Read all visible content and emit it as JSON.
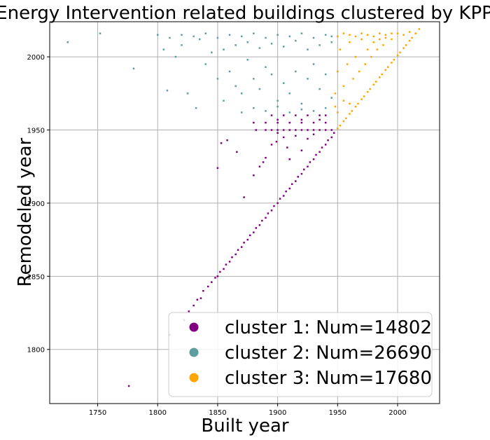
{
  "chart_data": {
    "type": "scatter",
    "title": "Energy Intervention related buildings clustered by KPP",
    "xlabel": "Built year",
    "ylabel": "Remodeled year",
    "xlim": [
      1710,
      2035
    ],
    "ylim": [
      1763,
      2024
    ],
    "x_ticks": [
      1750,
      1800,
      1850,
      1900,
      1950,
      2000
    ],
    "y_ticks": [
      1800,
      1850,
      1900,
      1950,
      2000
    ],
    "grid": true,
    "legend_position": "lower-right",
    "series": [
      {
        "name": "cluster 1: Num=14802",
        "color": "#800080",
        "points": [
          [
            1776,
            1775
          ],
          [
            1810,
            1810
          ],
          [
            1822,
            1820
          ],
          [
            1826,
            1826
          ],
          [
            1830,
            1830
          ],
          [
            1833,
            1834
          ],
          [
            1836,
            1835
          ],
          [
            1838,
            1840
          ],
          [
            1842,
            1843
          ],
          [
            1845,
            1846
          ],
          [
            1848,
            1849
          ],
          [
            1850,
            1850
          ],
          [
            1852,
            1853
          ],
          [
            1855,
            1855
          ],
          [
            1857,
            1858
          ],
          [
            1860,
            1860
          ],
          [
            1862,
            1863
          ],
          [
            1865,
            1865
          ],
          [
            1867,
            1868
          ],
          [
            1870,
            1870
          ],
          [
            1872,
            1873
          ],
          [
            1875,
            1875
          ],
          [
            1877,
            1878
          ],
          [
            1880,
            1880
          ],
          [
            1882,
            1883
          ],
          [
            1885,
            1885
          ],
          [
            1887,
            1888
          ],
          [
            1890,
            1890
          ],
          [
            1892,
            1893
          ],
          [
            1895,
            1895
          ],
          [
            1897,
            1898
          ],
          [
            1900,
            1900
          ],
          [
            1902,
            1903
          ],
          [
            1905,
            1905
          ],
          [
            1907,
            1908
          ],
          [
            1910,
            1910
          ],
          [
            1912,
            1913
          ],
          [
            1915,
            1915
          ],
          [
            1917,
            1918
          ],
          [
            1920,
            1920
          ],
          [
            1922,
            1923
          ],
          [
            1925,
            1925
          ],
          [
            1927,
            1928
          ],
          [
            1930,
            1930
          ],
          [
            1932,
            1933
          ],
          [
            1935,
            1935
          ],
          [
            1937,
            1938
          ],
          [
            1940,
            1940
          ],
          [
            1942,
            1943
          ],
          [
            1945,
            1945
          ],
          [
            1947,
            1948
          ],
          [
            1850,
            1924
          ],
          [
            1853,
            1941
          ],
          [
            1858,
            1943
          ],
          [
            1866,
            1935
          ],
          [
            1872,
            1904
          ],
          [
            1880,
            1919
          ],
          [
            1885,
            1925
          ],
          [
            1888,
            1928
          ],
          [
            1890,
            1931
          ],
          [
            1895,
            1940
          ],
          [
            1899,
            1942
          ],
          [
            1900,
            1948
          ],
          [
            1905,
            1945
          ],
          [
            1908,
            1938
          ],
          [
            1910,
            1930
          ],
          [
            1915,
            1946
          ],
          [
            1920,
            1936
          ],
          [
            1925,
            1944
          ],
          [
            1930,
            1947
          ],
          [
            1882,
            1950
          ],
          [
            1890,
            1950
          ],
          [
            1895,
            1950
          ],
          [
            1900,
            1950
          ],
          [
            1905,
            1950
          ],
          [
            1910,
            1950
          ],
          [
            1915,
            1950
          ],
          [
            1920,
            1950
          ],
          [
            1925,
            1950
          ],
          [
            1930,
            1950
          ],
          [
            1935,
            1950
          ],
          [
            1940,
            1950
          ],
          [
            1945,
            1950
          ],
          [
            1880,
            1955
          ],
          [
            1890,
            1955
          ],
          [
            1900,
            1955
          ],
          [
            1910,
            1955
          ],
          [
            1920,
            1955
          ],
          [
            1930,
            1955
          ],
          [
            1940,
            1955
          ],
          [
            1895,
            1960
          ],
          [
            1905,
            1960
          ],
          [
            1915,
            1960
          ],
          [
            1925,
            1960
          ],
          [
            1935,
            1960
          ],
          [
            1940,
            1960
          ],
          [
            1900,
            1957
          ],
          [
            1920,
            1957
          ],
          [
            1935,
            1957
          ]
        ]
      },
      {
        "name": "cluster 2: Num=26690",
        "color": "#5f9ea0",
        "points": [
          [
            1725,
            2010
          ],
          [
            1752,
            2016
          ],
          [
            1780,
            1992
          ],
          [
            1800,
            2015
          ],
          [
            1805,
            2005
          ],
          [
            1808,
            1977
          ],
          [
            1810,
            2013
          ],
          [
            1815,
            2000
          ],
          [
            1820,
            2008
          ],
          [
            1825,
            1975
          ],
          [
            1832,
            1965
          ],
          [
            1835,
            2012
          ],
          [
            1840,
            1995
          ],
          [
            1845,
            2003
          ],
          [
            1850,
            1985
          ],
          [
            1855,
            1970
          ],
          [
            1860,
            1990
          ],
          [
            1865,
            1980
          ],
          [
            1870,
            1975
          ],
          [
            1875,
            1998
          ],
          [
            1880,
            1985
          ],
          [
            1885,
            1978
          ],
          [
            1890,
            1993
          ],
          [
            1895,
            1988
          ],
          [
            1900,
            1970
          ],
          [
            1905,
            1982
          ],
          [
            1910,
            1975
          ],
          [
            1915,
            1990
          ],
          [
            1920,
            1968
          ],
          [
            1925,
            1985
          ],
          [
            1930,
            1995
          ],
          [
            1935,
            1978
          ],
          [
            1940,
            1988
          ],
          [
            1945,
            1972
          ],
          [
            1820,
            2015
          ],
          [
            1830,
            2014
          ],
          [
            1840,
            2016
          ],
          [
            1850,
            2013
          ],
          [
            1860,
            2015
          ],
          [
            1870,
            2014
          ],
          [
            1880,
            2016
          ],
          [
            1890,
            2013
          ],
          [
            1900,
            2015
          ],
          [
            1910,
            2014
          ],
          [
            1920,
            2016
          ],
          [
            1930,
            2013
          ],
          [
            1940,
            2015
          ],
          [
            1945,
            2014
          ],
          [
            1855,
            2005
          ],
          [
            1865,
            2008
          ],
          [
            1875,
            2010
          ],
          [
            1885,
            2006
          ],
          [
            1895,
            2009
          ],
          [
            1905,
            2007
          ],
          [
            1915,
            2011
          ],
          [
            1925,
            2005
          ],
          [
            1935,
            2008
          ],
          [
            1945,
            2010
          ],
          [
            1870,
            1962
          ],
          [
            1880,
            1965
          ],
          [
            1890,
            1963
          ],
          [
            1900,
            1966
          ],
          [
            1910,
            1962
          ],
          [
            1920,
            1964
          ],
          [
            1930,
            1963
          ],
          [
            1940,
            1965
          ]
        ]
      },
      {
        "name": "cluster 3: Num=17680",
        "color": "#ffa500",
        "points": [
          [
            1950,
            1951
          ],
          [
            1952,
            1953
          ],
          [
            1955,
            1956
          ],
          [
            1957,
            1958
          ],
          [
            1960,
            1961
          ],
          [
            1962,
            1963
          ],
          [
            1965,
            1966
          ],
          [
            1967,
            1968
          ],
          [
            1970,
            1971
          ],
          [
            1972,
            1973
          ],
          [
            1975,
            1976
          ],
          [
            1977,
            1978
          ],
          [
            1980,
            1981
          ],
          [
            1982,
            1983
          ],
          [
            1985,
            1986
          ],
          [
            1987,
            1988
          ],
          [
            1990,
            1991
          ],
          [
            1992,
            1993
          ],
          [
            1995,
            1996
          ],
          [
            1997,
            1998
          ],
          [
            2000,
            2001
          ],
          [
            2002,
            2003
          ],
          [
            2005,
            2006
          ],
          [
            2007,
            2008
          ],
          [
            2010,
            2011
          ],
          [
            2012,
            2013
          ],
          [
            2015,
            2016
          ],
          [
            2018,
            2019
          ],
          [
            1948,
            1975
          ],
          [
            1950,
            1990
          ],
          [
            1952,
            2005
          ],
          [
            1955,
            1980
          ],
          [
            1958,
            1995
          ],
          [
            1960,
            2010
          ],
          [
            1963,
            1985
          ],
          [
            1965,
            2000
          ],
          [
            1968,
            1990
          ],
          [
            1970,
            2012
          ],
          [
            1973,
            1995
          ],
          [
            1975,
            2005
          ],
          [
            1978,
            2000
          ],
          [
            1980,
            2010
          ],
          [
            1983,
            2005
          ],
          [
            1985,
            2012
          ],
          [
            1988,
            2008
          ],
          [
            1990,
            2015
          ],
          [
            1995,
            2012
          ],
          [
            2000,
            2016
          ],
          [
            2005,
            2015
          ],
          [
            2010,
            2017
          ],
          [
            1950,
            2014
          ],
          [
            1955,
            2016
          ],
          [
            1960,
            2015
          ],
          [
            1965,
            2014
          ],
          [
            1970,
            2016
          ],
          [
            1975,
            2015
          ],
          [
            1980,
            2014
          ],
          [
            1985,
            2016
          ],
          [
            1990,
            2013
          ],
          [
            1995,
            2016
          ],
          [
            1948,
            1966
          ],
          [
            1950,
            1962
          ],
          [
            1955,
            1970
          ],
          [
            1960,
            1968
          ]
        ]
      }
    ],
    "legend": [
      {
        "label": "cluster 1: Num=14802",
        "color": "#800080"
      },
      {
        "label": "cluster 2: Num=26690",
        "color": "#5f9ea0"
      },
      {
        "label": "cluster 3: Num=17680",
        "color": "#ffa500"
      }
    ]
  }
}
